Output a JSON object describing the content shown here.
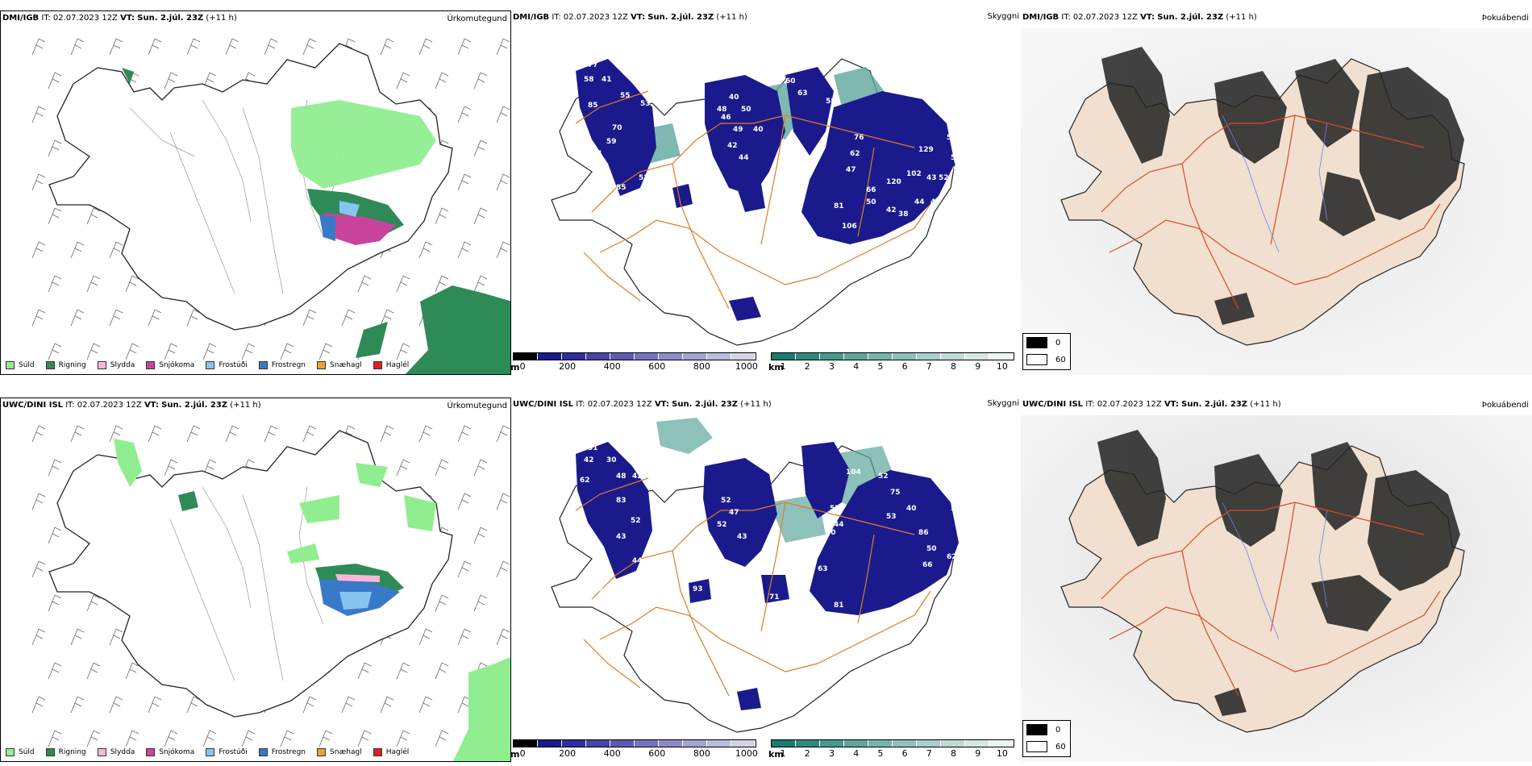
{
  "rows": [
    {
      "model": "DMI/IGB",
      "it_label": "IT:",
      "it_value": "02.07.2023 12Z",
      "vt_label": "VT:",
      "vt_value": "Sun. 2.júl. 23Z",
      "lead": "(+11 h)"
    },
    {
      "model": "UWC/DINI ISL",
      "it_label": "IT:",
      "it_value": "02.07.2023 12Z",
      "vt_label": "VT:",
      "vt_value": "Sun. 2.júl. 23Z",
      "lead": "(+11 h)"
    }
  ],
  "panel_titles": {
    "precip": "Úrkomutegund",
    "visibility": "Skyggni",
    "fog": "Þokuábendi"
  },
  "precip_legend": [
    {
      "label": "Súld",
      "color": "#90ee90"
    },
    {
      "label": "Rigning",
      "color": "#2e8b57"
    },
    {
      "label": "Slydda",
      "color": "#ffb6d9"
    },
    {
      "label": "Snjókoma",
      "color": "#c8449c"
    },
    {
      "label": "Frostúði",
      "color": "#87c4f0"
    },
    {
      "label": "Frostregn",
      "color": "#3a78c8"
    },
    {
      "label": "Snæhagl",
      "color": "#f0a030"
    },
    {
      "label": "Haglél",
      "color": "#e02020"
    }
  ],
  "ceiling_bar": {
    "unit": "m",
    "ticks": [
      "0",
      "200",
      "400",
      "600",
      "800",
      "1000"
    ],
    "colors": [
      "#000000",
      "#1a1a8c",
      "#2e2e9e",
      "#4444aa",
      "#5c5cb4",
      "#7474be",
      "#8c8cc8",
      "#a4a4d2",
      "#bcbcdc",
      "#d4d4e8"
    ]
  },
  "vis_bar": {
    "unit": "km",
    "ticks": [
      "1",
      "2",
      "3",
      "4",
      "5",
      "6",
      "7",
      "8",
      "9",
      "10"
    ],
    "colors": [
      "#1a7a6e",
      "#2e8a7e",
      "#46988e",
      "#5ea69c",
      "#76b4aa",
      "#8ec2b8",
      "#a6d0c8",
      "#bedcd6",
      "#d6e8e4",
      "#eef4f2"
    ]
  },
  "fog_legend": {
    "dark": "0",
    "light": "60"
  },
  "ceiling_values": {
    "row1": [
      "77",
      "58",
      "41",
      "85",
      "55",
      "53",
      "70",
      "59",
      "84",
      "52",
      "85",
      "48",
      "40",
      "46",
      "50",
      "49",
      "42",
      "44",
      "40",
      "60",
      "63",
      "58",
      "76",
      "62",
      "66",
      "47",
      "81",
      "50",
      "42",
      "38",
      "120",
      "106",
      "102",
      "129",
      "43",
      "44",
      "49",
      "57",
      "53",
      "52",
      "59"
    ],
    "row2": [
      "51",
      "42",
      "30",
      "62",
      "48",
      "42",
      "83",
      "52",
      "43",
      "58",
      "44",
      "64",
      "93",
      "61",
      "70",
      "71",
      "52",
      "47",
      "52",
      "43",
      "55",
      "44",
      "81",
      "63",
      "50",
      "104",
      "52",
      "75",
      "53",
      "40",
      "86",
      "50",
      "55",
      "66",
      "62"
    ]
  }
}
